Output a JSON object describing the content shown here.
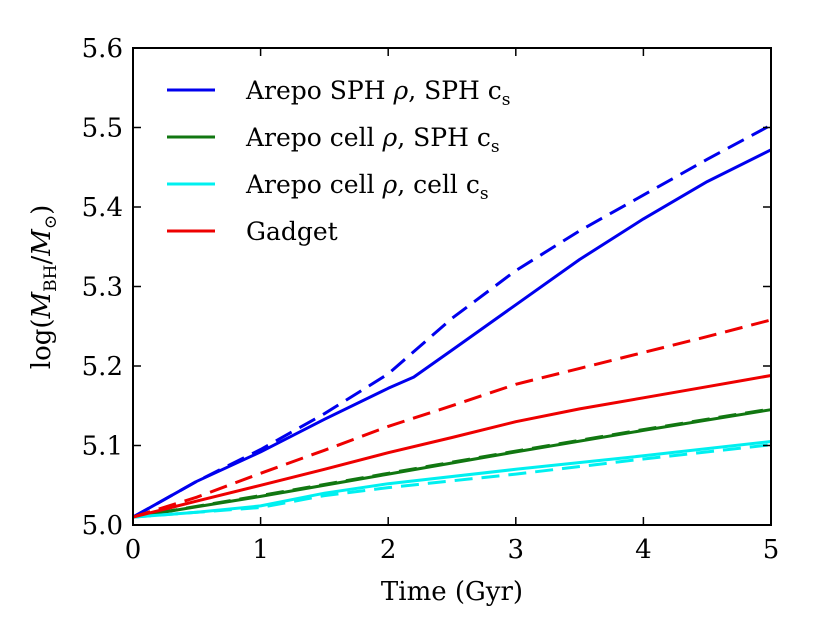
{
  "chart_data": {
    "type": "line",
    "xlabel": "Time (Gyr)",
    "ylabel": "log(M_BH/M_⊙)",
    "ylabel_parts": {
      "prefix": "log(",
      "main1": "M",
      "sub1": "BH",
      "slash": "/",
      "main2": "M",
      "sub2": "⊙",
      "suffix": ")"
    },
    "xlim": [
      0,
      5
    ],
    "ylim": [
      5.0,
      5.6
    ],
    "xticks": [
      0,
      1,
      2,
      3,
      4,
      5
    ],
    "xtick_labels": [
      "0",
      "1",
      "2",
      "3",
      "4",
      "5"
    ],
    "yticks": [
      5.0,
      5.1,
      5.2,
      5.3,
      5.4,
      5.5,
      5.6
    ],
    "ytick_labels": [
      "5.0",
      "5.1",
      "5.2",
      "5.3",
      "5.4",
      "5.5",
      "5.6"
    ],
    "grid": false,
    "legend_location": "top-left",
    "legend": [
      {
        "key": "sph",
        "color": "#0000ee",
        "parts": [
          {
            "t": "Arepo SPH "
          },
          {
            "t": "ρ",
            "i": true
          },
          {
            "t": ", SPH c"
          },
          {
            "t": "s",
            "sub": true
          }
        ]
      },
      {
        "key": "cell_sph",
        "color": "#117711",
        "parts": [
          {
            "t": "Arepo cell "
          },
          {
            "t": "ρ",
            "i": true
          },
          {
            "t": ", SPH c"
          },
          {
            "t": "s",
            "sub": true
          }
        ]
      },
      {
        "key": "cell",
        "color": "#00f0f0",
        "parts": [
          {
            "t": "Arepo cell "
          },
          {
            "t": "ρ",
            "i": true
          },
          {
            "t": ", cell c"
          },
          {
            "t": "s",
            "sub": true
          }
        ]
      },
      {
        "key": "gadget",
        "color": "#ee0000",
        "parts": [
          {
            "t": "Gadget"
          }
        ]
      }
    ],
    "series": [
      {
        "name": "Arepo SPH ρ, SPH c_s (solid)",
        "color": "#0000ee",
        "style": "solid",
        "x": [
          0,
          0.5,
          1.0,
          1.5,
          2.0,
          2.2,
          2.5,
          3.0,
          3.5,
          4.0,
          4.5,
          5.0
        ],
        "y": [
          5.01,
          5.055,
          5.092,
          5.133,
          5.172,
          5.186,
          5.22,
          5.277,
          5.334,
          5.385,
          5.432,
          5.472
        ]
      },
      {
        "name": "Arepo SPH ρ, SPH c_s (dashed)",
        "color": "#0000ee",
        "style": "dashed",
        "x": [
          0,
          0.5,
          1.0,
          1.5,
          2.0,
          2.5,
          3.0,
          3.5,
          4.0,
          4.5,
          5.0
        ],
        "y": [
          5.01,
          5.055,
          5.095,
          5.14,
          5.19,
          5.26,
          5.32,
          5.37,
          5.415,
          5.46,
          5.503
        ]
      },
      {
        "name": "Arepo cell ρ, SPH c_s (solid)",
        "color": "#117711",
        "style": "solid",
        "x": [
          0,
          1.0,
          2.0,
          3.0,
          4.0,
          5.0
        ],
        "y": [
          5.01,
          5.036,
          5.064,
          5.092,
          5.119,
          5.145
        ]
      },
      {
        "name": "Arepo cell ρ, SPH c_s (dashed)",
        "color": "#117711",
        "style": "dashed",
        "x": [
          0,
          1.0,
          2.0,
          3.0,
          4.0,
          5.0
        ],
        "y": [
          5.01,
          5.037,
          5.065,
          5.093,
          5.12,
          5.146
        ]
      },
      {
        "name": "Arepo cell ρ, cell c_s (solid)",
        "color": "#00f0f0",
        "style": "solid",
        "x": [
          0,
          0.5,
          1.0,
          1.5,
          2.0,
          3.0,
          4.0,
          5.0
        ],
        "y": [
          5.01,
          5.016,
          5.024,
          5.04,
          5.052,
          5.07,
          5.087,
          5.105
        ]
      },
      {
        "name": "Arepo cell ρ, cell c_s (dashed)",
        "color": "#00f0f0",
        "style": "dashed",
        "x": [
          0,
          0.5,
          1.0,
          1.5,
          2.0,
          3.0,
          4.0,
          5.0
        ],
        "y": [
          5.01,
          5.016,
          5.022,
          5.037,
          5.047,
          5.064,
          5.083,
          5.101
        ]
      },
      {
        "name": "Gadget (solid)",
        "color": "#ee0000",
        "style": "solid",
        "x": [
          0,
          0.5,
          1.0,
          1.5,
          2.0,
          2.5,
          3.0,
          3.5,
          4.0,
          4.5,
          5.0
        ],
        "y": [
          5.01,
          5.03,
          5.05,
          5.07,
          5.091,
          5.11,
          5.13,
          5.146,
          5.16,
          5.174,
          5.188
        ]
      },
      {
        "name": "Gadget (dashed)",
        "color": "#ee0000",
        "style": "dashed",
        "x": [
          0,
          0.5,
          1.0,
          1.5,
          2.0,
          2.5,
          3.0,
          3.5,
          4.0,
          4.5,
          5.0
        ],
        "y": [
          5.01,
          5.035,
          5.065,
          5.094,
          5.124,
          5.15,
          5.177,
          5.197,
          5.217,
          5.237,
          5.258
        ]
      }
    ]
  }
}
